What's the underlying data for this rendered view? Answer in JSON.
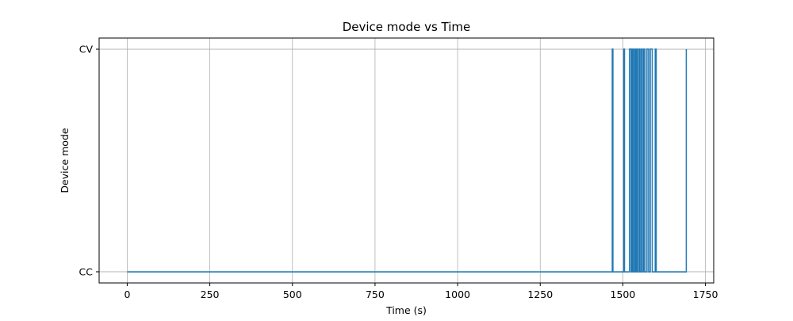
{
  "chart_data": {
    "type": "line",
    "title": "Device mode vs Time",
    "xlabel": "Time (s)",
    "ylabel": "Device mode",
    "xlim": [
      -85,
      1775
    ],
    "ylim": [
      -0.05,
      1.05
    ],
    "grid": true,
    "x_ticks": [
      0,
      250,
      500,
      750,
      1000,
      1250,
      1500,
      1750
    ],
    "x_tick_labels": [
      "0",
      "250",
      "500",
      "750",
      "1000",
      "1250",
      "1500",
      "1750"
    ],
    "y_ticks": [
      0,
      1
    ],
    "y_tick_labels": [
      "CC",
      "CV"
    ],
    "series": [
      {
        "color": "#1f77b4",
        "drawstyle": "steps-post",
        "x": [
          0,
          1468,
          1470,
          1503,
          1505,
          1520,
          1525,
          1528,
          1531,
          1535,
          1538,
          1541,
          1543,
          1547,
          1551,
          1555,
          1559,
          1563,
          1567,
          1573,
          1578,
          1583,
          1589,
          1598,
          1601,
          1692
        ],
        "y": [
          0,
          1,
          0,
          1,
          0,
          1,
          0,
          1,
          0,
          1,
          0,
          1,
          0,
          1,
          0,
          1,
          0,
          1,
          0,
          1,
          0,
          1,
          0,
          1,
          0,
          1
        ]
      }
    ]
  }
}
